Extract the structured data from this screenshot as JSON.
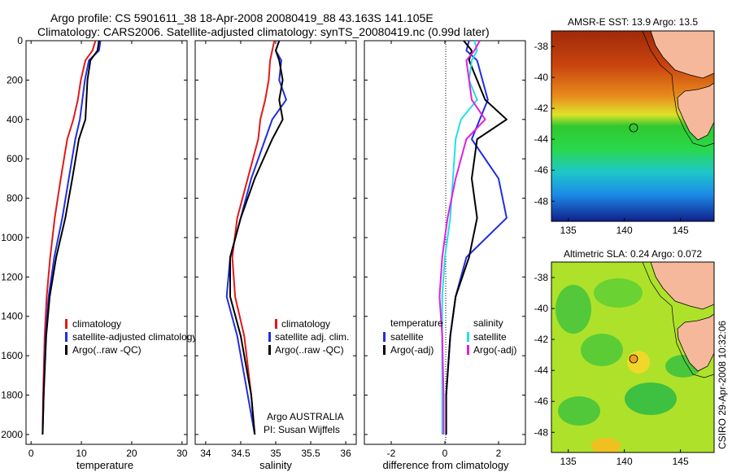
{
  "title_line1": "Argo profile: CS 5901611_38 18-Apr-2008 20080419_88 43.163S 141.105E",
  "title_line2": "Climatology: CARS2006. Satellite-adjusted climatology: synTS_20080419.nc (0.99d later)",
  "credit": "CSIRO 29-Apr-2008 10:32:06",
  "colors": {
    "red": "#e11919",
    "blue": "#1f2ee0",
    "black": "#000000",
    "cyan": "#22e0e8",
    "magenta": "#e020e0",
    "coast": "#f5b89a"
  },
  "chart_data": [
    {
      "type": "line",
      "xlabel": "temperature",
      "xlim": [
        -1,
        31
      ],
      "ylim": [
        2050,
        0
      ],
      "xticks": [
        "0",
        "10",
        "20",
        "30"
      ],
      "yticks": [
        "0",
        "200",
        "400",
        "600",
        "800",
        "1000",
        "1200",
        "1400",
        "1600",
        "1800",
        "2000"
      ],
      "legend": [
        "climatology",
        "satellite-adjusted climatology",
        "Argo(..raw -QC)"
      ],
      "series": [
        {
          "name": "climatology",
          "color": "red",
          "x": [
            12.8,
            12.2,
            10.8,
            9.9,
            9.3,
            8.4,
            7.2,
            5.9,
            4.7,
            3.8,
            3.1,
            2.7,
            2.4,
            2.3
          ],
          "y": [
            0,
            50,
            100,
            200,
            300,
            400,
            500,
            700,
            900,
            1100,
            1300,
            1500,
            1800,
            2000
          ]
        },
        {
          "name": "satellite-adjusted climatology",
          "color": "blue",
          "x": [
            13.8,
            13.5,
            11.5,
            10.7,
            10.2,
            9.7,
            8.8,
            7.5,
            6.2,
            4.6,
            3.5,
            2.9,
            2.5,
            2.3
          ],
          "y": [
            0,
            50,
            100,
            200,
            300,
            400,
            500,
            700,
            900,
            1100,
            1300,
            1500,
            1800,
            2000
          ]
        },
        {
          "name": "Argo(..raw -QC)",
          "color": "black",
          "x": [
            13.5,
            13.2,
            11.8,
            11.2,
            11.0,
            10.8,
            9.5,
            8.2,
            6.8,
            5.0,
            3.7,
            3.0,
            2.5,
            2.3
          ],
          "y": [
            0,
            50,
            100,
            200,
            300,
            400,
            500,
            700,
            900,
            1100,
            1300,
            1500,
            1800,
            2000
          ]
        }
      ]
    },
    {
      "type": "line",
      "xlabel": "salinity",
      "xlim": [
        33.85,
        36.15
      ],
      "ylim": [
        2050,
        0
      ],
      "xticks": [
        "34",
        "34.5",
        "35",
        "35.5",
        "36"
      ],
      "legend": [
        "climatology",
        "satellite adj. clim.",
        "Argo(..raw -QC)"
      ],
      "annotation": [
        "Argo AUSTRALIA",
        "PI: Susan Wijffels"
      ],
      "series": [
        {
          "name": "climatology",
          "color": "red",
          "x": [
            34.98,
            34.95,
            34.92,
            34.9,
            34.85,
            34.78,
            34.75,
            34.6,
            34.45,
            34.38,
            34.42,
            34.55,
            34.65,
            34.7
          ],
          "y": [
            0,
            50,
            100,
            200,
            300,
            400,
            500,
            700,
            900,
            1100,
            1300,
            1500,
            1800,
            2000
          ]
        },
        {
          "name": "satellite adj. clim.",
          "color": "blue",
          "x": [
            35.05,
            35.0,
            35.08,
            35.05,
            35.15,
            34.95,
            34.85,
            34.65,
            34.5,
            34.35,
            34.3,
            34.45,
            34.6,
            34.7
          ],
          "y": [
            0,
            50,
            100,
            200,
            300,
            400,
            500,
            700,
            900,
            1100,
            1300,
            1500,
            1800,
            2000
          ]
        },
        {
          "name": "Argo(..raw -QC)",
          "color": "black",
          "x": [
            35.05,
            35.0,
            35.05,
            35.1,
            35.05,
            35.1,
            34.95,
            34.7,
            34.5,
            34.35,
            34.35,
            34.5,
            34.65,
            34.7
          ],
          "y": [
            0,
            50,
            100,
            200,
            300,
            400,
            500,
            700,
            900,
            1100,
            1300,
            1500,
            1800,
            2000
          ]
        }
      ]
    },
    {
      "type": "line",
      "xlabel": "difference from climatology",
      "xlim": [
        -3,
        3
      ],
      "ylim": [
        2050,
        0
      ],
      "xticks": [
        "-2",
        "0",
        "2"
      ],
      "legend_titles": [
        "temperature",
        "salinity"
      ],
      "legend": [
        "satellite",
        "Argo(-adj)",
        "satellite",
        "Argo(-adj)"
      ],
      "series": [
        {
          "name": "temperature satellite",
          "color": "blue",
          "x": [
            0.9,
            0.8,
            1.2,
            1.4,
            1.6,
            1.3,
            1.0,
            2.0,
            2.3,
            0.8,
            0.4,
            0.2,
            0.05,
            0.05
          ],
          "y": [
            0,
            50,
            100,
            200,
            300,
            400,
            500,
            700,
            900,
            1100,
            1300,
            1500,
            1800,
            2000
          ]
        },
        {
          "name": "temperature Argo(-adj)",
          "color": "black",
          "x": [
            0.7,
            1.0,
            0.9,
            1.2,
            1.5,
            2.3,
            1.2,
            1.0,
            1.2,
            0.9,
            0.4,
            0.2,
            0.05,
            0.05
          ],
          "y": [
            0,
            50,
            100,
            200,
            300,
            400,
            500,
            700,
            900,
            1100,
            1300,
            1500,
            1800,
            2000
          ]
        },
        {
          "name": "salinity satellite",
          "color": "cyan",
          "x": [
            1.1,
            1.2,
            1.0,
            0.9,
            1.2,
            0.6,
            0.4,
            0.3,
            0.2,
            0.0,
            -0.1,
            -0.1,
            -0.1,
            -0.1
          ],
          "y": [
            0,
            50,
            100,
            200,
            300,
            400,
            500,
            700,
            900,
            1100,
            1300,
            1500,
            1800,
            2000
          ]
        },
        {
          "name": "salinity Argo(-adj)",
          "color": "magenta",
          "x": [
            1.3,
            1.1,
            0.8,
            0.9,
            1.0,
            1.5,
            0.8,
            0.4,
            0.1,
            -0.1,
            -0.2,
            -0.1,
            -0.05,
            -0.05
          ],
          "y": [
            0,
            50,
            100,
            200,
            300,
            400,
            500,
            700,
            900,
            1100,
            1300,
            1500,
            1800,
            2000
          ]
        }
      ]
    },
    {
      "type": "heatmap",
      "title": "AMSR-E SST: 13.9 Argo: 13.5",
      "xticks": [
        "135",
        "140",
        "145"
      ],
      "yticks": [
        "-38",
        "-40",
        "-42",
        "-44",
        "-46",
        "-48"
      ],
      "marker": {
        "lon": 141.1,
        "lat": -43.16
      }
    },
    {
      "type": "heatmap",
      "title": "Altimetric SLA: 0.24 Argo: 0.072",
      "xticks": [
        "135",
        "140",
        "145"
      ],
      "yticks": [
        "-38",
        "-40",
        "-42",
        "-44",
        "-46",
        "-48"
      ],
      "marker": {
        "lon": 141.1,
        "lat": -43.16
      }
    }
  ]
}
